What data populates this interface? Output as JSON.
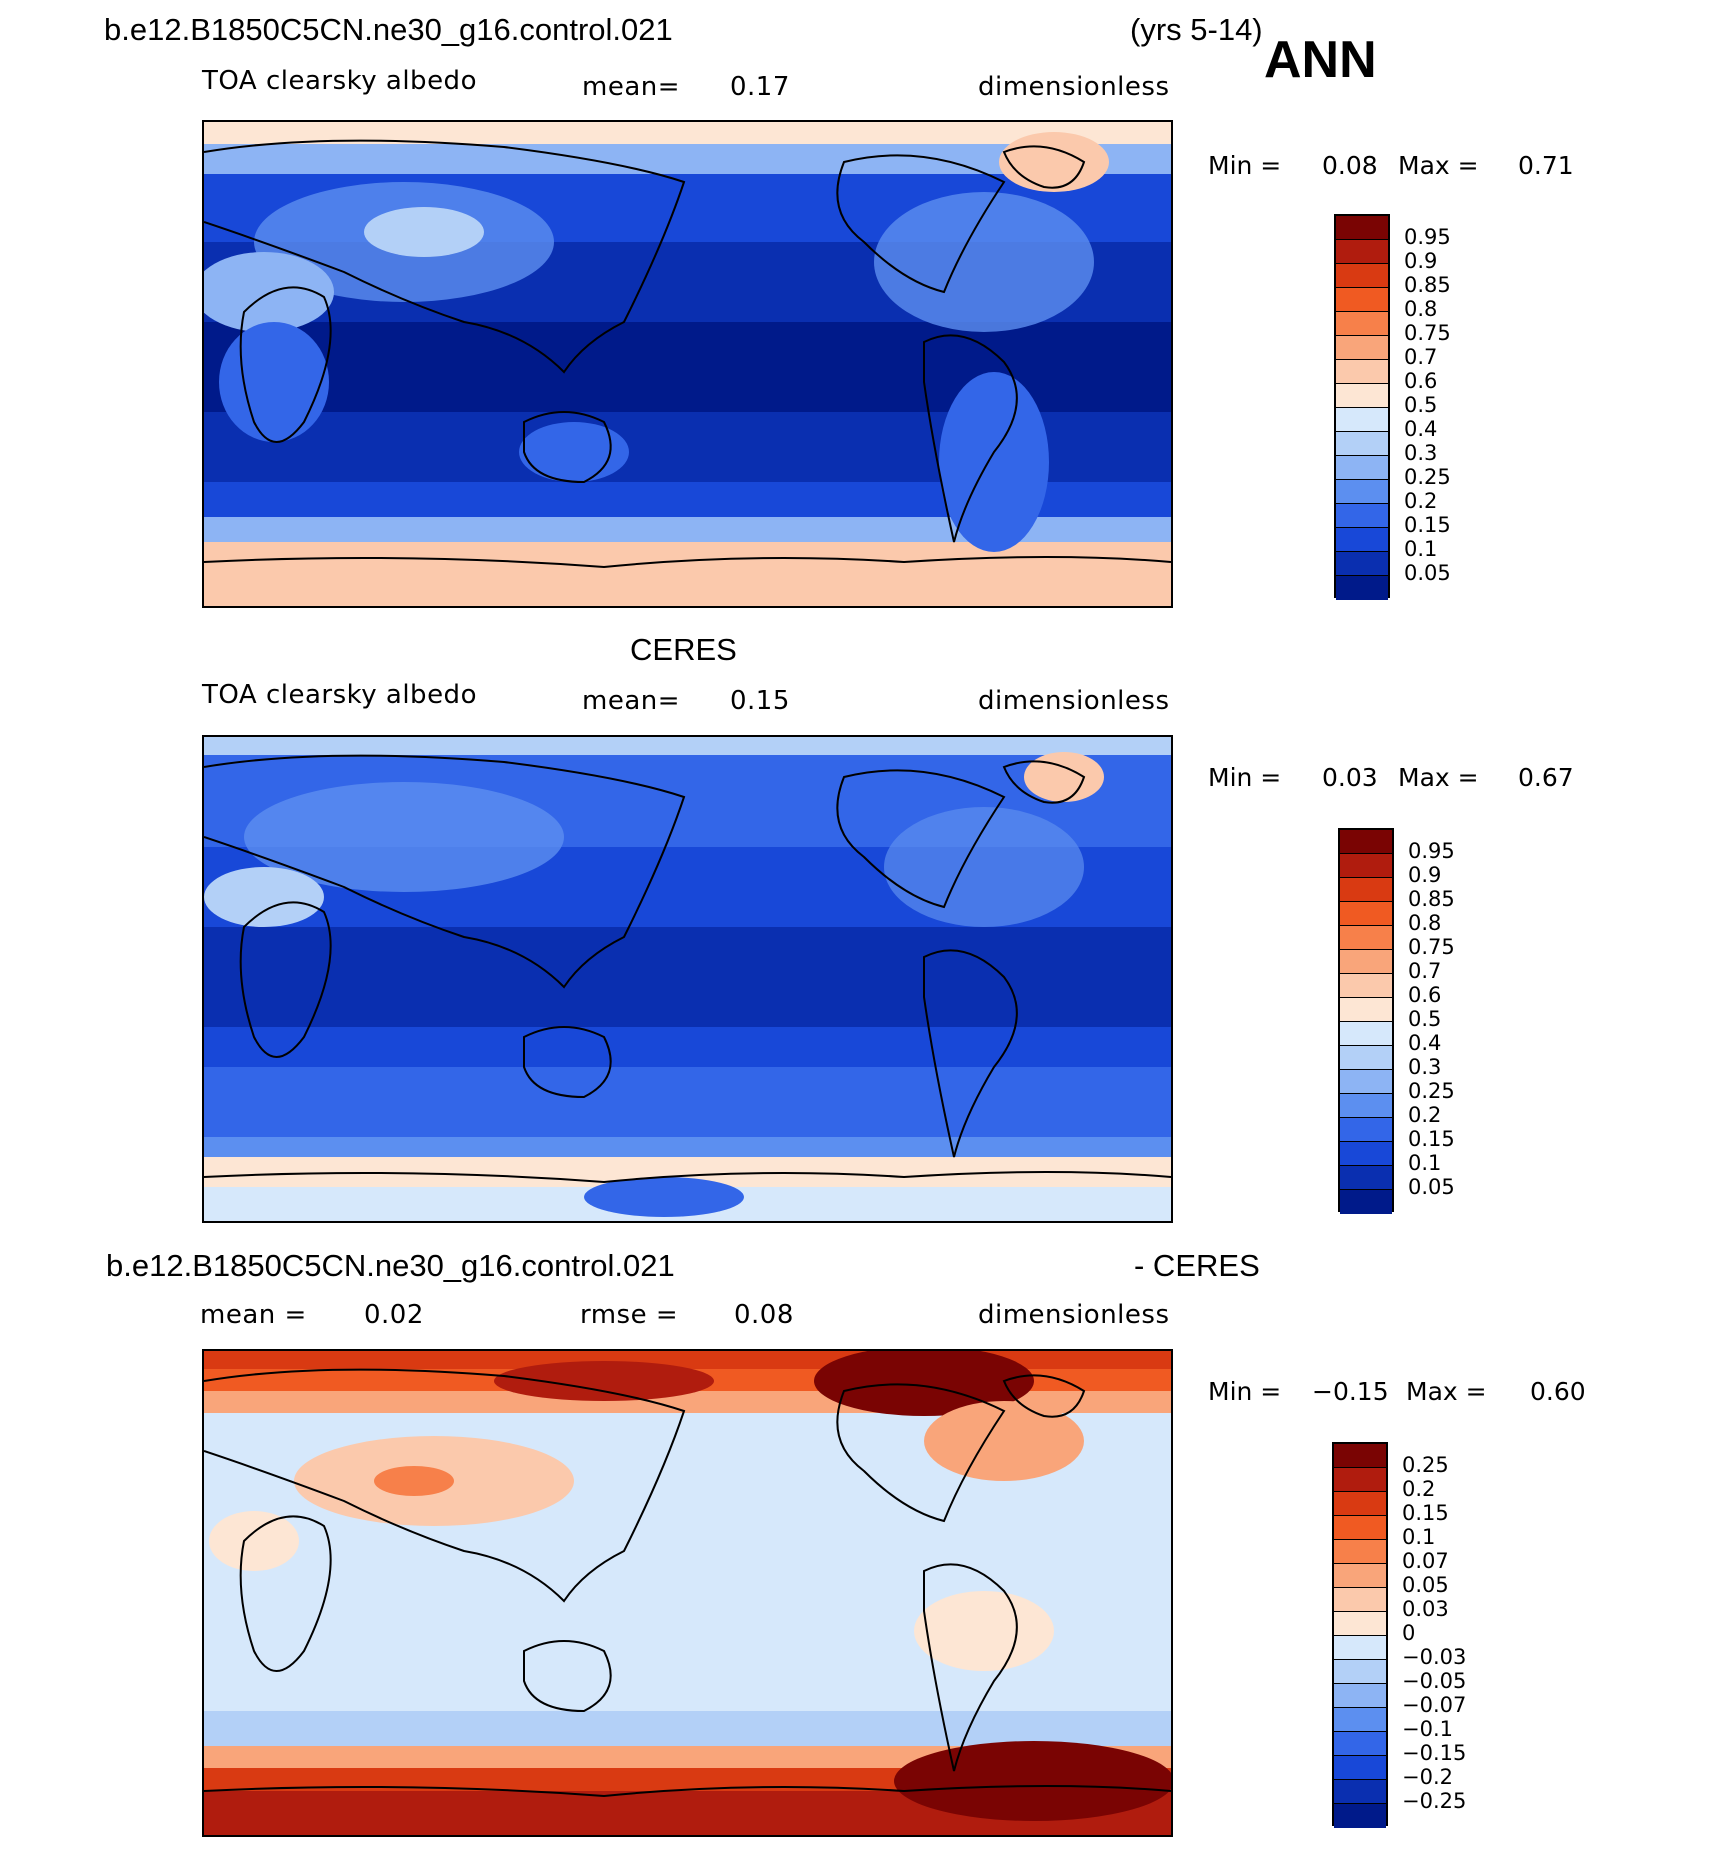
{
  "header": {
    "case_name": "b.e12.B1850C5CN.ne30_g16.control.021",
    "years": "(yrs 5-14)",
    "season": "ANN"
  },
  "panels": [
    {
      "id": "model",
      "title": "",
      "variable": "TOA clearsky albedo",
      "stat1_label": "mean=",
      "stat1_value": "0.17",
      "stat2_label": "",
      "stat2_value": "",
      "units": "dimensionless",
      "min_label": "Min =",
      "min_value": "0.08",
      "max_label": "Max =",
      "max_value": "0.71",
      "colorbar_labels": [
        "0.95",
        "0.9",
        "0.85",
        "0.8",
        "0.75",
        "0.7",
        "0.6",
        "0.5",
        "0.4",
        "0.3",
        "0.25",
        "0.2",
        "0.15",
        "0.1",
        "0.05"
      ],
      "colorbar_colors": [
        "#7a0403",
        "#b01c0e",
        "#d93a12",
        "#f05a22",
        "#f7804a",
        "#f9a57a",
        "#fbc9ac",
        "#fde6d4",
        "#d6e8fb",
        "#b3d0f7",
        "#8db4f4",
        "#5c8ff0",
        "#3366e8",
        "#1848d8",
        "#0a2fb0",
        "#001a8a"
      ]
    },
    {
      "id": "obs",
      "title": "CERES",
      "variable": "TOA clearsky albedo",
      "stat1_label": "mean=",
      "stat1_value": "0.15",
      "stat2_label": "",
      "stat2_value": "",
      "units": "dimensionless",
      "min_label": "Min =",
      "min_value": "0.03",
      "max_label": "Max =",
      "max_value": "0.67",
      "colorbar_labels": [
        "0.95",
        "0.9",
        "0.85",
        "0.8",
        "0.75",
        "0.7",
        "0.6",
        "0.5",
        "0.4",
        "0.3",
        "0.25",
        "0.2",
        "0.15",
        "0.1",
        "0.05"
      ],
      "colorbar_colors": [
        "#7a0403",
        "#b01c0e",
        "#d93a12",
        "#f05a22",
        "#f7804a",
        "#f9a57a",
        "#fbc9ac",
        "#fde6d4",
        "#d6e8fb",
        "#b3d0f7",
        "#8db4f4",
        "#5c8ff0",
        "#3366e8",
        "#1848d8",
        "#0a2fb0",
        "#001a8a"
      ]
    },
    {
      "id": "diff",
      "title_left": "b.e12.B1850C5CN.ne30_g16.control.021",
      "title_right": "- CERES",
      "variable": "",
      "stat1_label": "mean =",
      "stat1_value": "0.02",
      "stat2_label": "rmse =",
      "stat2_value": "0.08",
      "units": "dimensionless",
      "min_label": "Min =",
      "min_value": "−0.15",
      "max_label": "Max =",
      "max_value": "0.60",
      "colorbar_labels": [
        "0.25",
        "0.2",
        "0.15",
        "0.1",
        "0.07",
        "0.05",
        "0.03",
        "0",
        "−0.03",
        "−0.05",
        "−0.07",
        "−0.1",
        "−0.15",
        "−0.2",
        "−0.25"
      ],
      "colorbar_colors": [
        "#7a0403",
        "#b01c0e",
        "#d93a12",
        "#f05a22",
        "#f7804a",
        "#f9a57a",
        "#fbc9ac",
        "#fde6d4",
        "#d6e8fb",
        "#b3d0f7",
        "#8db4f4",
        "#5c8ff0",
        "#3366e8",
        "#1848d8",
        "#0a2fb0",
        "#001a8a"
      ]
    }
  ]
}
